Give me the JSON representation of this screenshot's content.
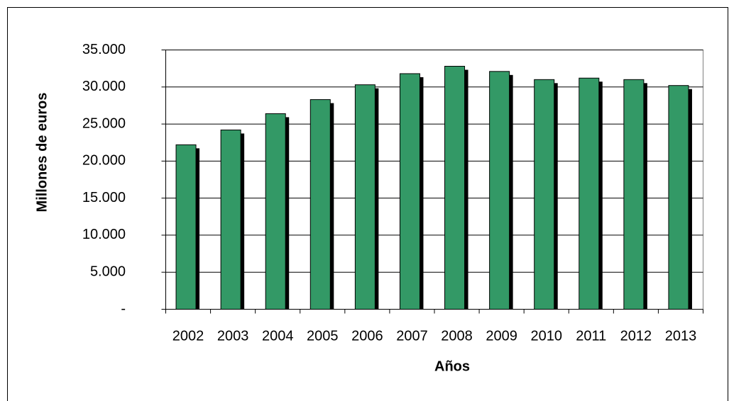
{
  "chart_data": {
    "type": "bar",
    "x_label": "Años",
    "y_label": "Millones de euros",
    "categories": [
      "2002",
      "2003",
      "2004",
      "2005",
      "2006",
      "2007",
      "2008",
      "2009",
      "2010",
      "2011",
      "2012",
      "2013"
    ],
    "values": [
      22200,
      24200,
      26400,
      28300,
      30300,
      31800,
      32800,
      32100,
      31000,
      31200,
      31000,
      30200
    ],
    "color": "#339966",
    "ylim": [
      0,
      35000
    ],
    "yticks": [
      {
        "value": 0,
        "label": "-"
      },
      {
        "value": 5000,
        "label": "5.000"
      },
      {
        "value": 10000,
        "label": "10.000"
      },
      {
        "value": 15000,
        "label": "15.000"
      },
      {
        "value": 20000,
        "label": "20.000"
      },
      {
        "value": 25000,
        "label": "25.000"
      },
      {
        "value": 30000,
        "label": "30.000"
      },
      {
        "value": 35000,
        "label": "35.000"
      }
    ],
    "grid": true
  }
}
